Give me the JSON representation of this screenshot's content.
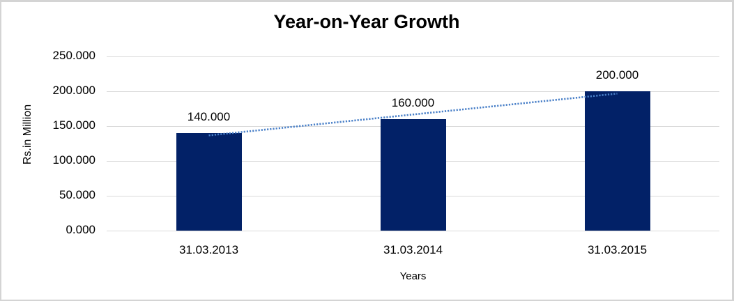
{
  "window": {
    "background": "#ffffff",
    "border_color": "#d4d4d4"
  },
  "chart_data": {
    "type": "bar",
    "title": "Year-on-Year Growth",
    "categories": [
      "31.03.2013",
      "31.03.2014",
      "31.03.2015"
    ],
    "values": [
      140,
      160,
      200
    ],
    "value_labels": [
      "140.000",
      "160.000",
      "200.000"
    ],
    "xlabel": "Years",
    "ylabel": "Rs.in Million",
    "ylim": [
      0,
      250
    ],
    "ytick_interval": 50,
    "yticks": [
      "250.000",
      "200.000",
      "150.000",
      "100.000",
      "50.000",
      "0.000"
    ],
    "grid": true,
    "legend": "none",
    "bar_color": "#022167",
    "gridline_color": "#d9d9d9",
    "text_color": "#000000",
    "trendline": {
      "type": "linear",
      "style": "dotted",
      "color": "#4a80c8",
      "fitted_endpoints": [
        136.67,
        196.67
      ]
    }
  }
}
